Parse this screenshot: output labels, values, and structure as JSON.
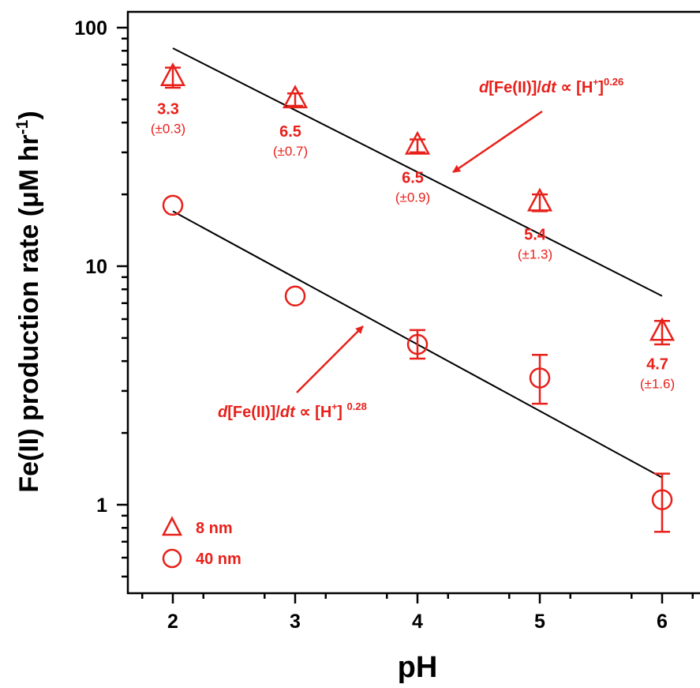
{
  "colors": {
    "series": "#e8201a",
    "axis": "#000000",
    "fit_line": "#000000"
  },
  "chart_data": {
    "type": "scatter",
    "xlabel": "pH",
    "ylabel_main": "Fe(II) production rate  (μM hr",
    "ylabel_sup": "-1",
    "ylabel_close": ")",
    "yscale": "log",
    "xlim": [
      1.6,
      6.3
    ],
    "ylim": [
      0.5,
      110
    ],
    "xticks": [
      2,
      3,
      4,
      5,
      6
    ],
    "xtick_labels": [
      "2",
      "3",
      "4",
      "5",
      "6"
    ],
    "yticks_major": [
      1,
      10,
      100
    ],
    "ytick_labels": [
      "1",
      "10",
      "100"
    ],
    "grid": false,
    "legend_position": "bottom-left",
    "series": [
      {
        "name": "8 nm",
        "marker": "triangle",
        "x": [
          2,
          3,
          4,
          5,
          6
        ],
        "y": [
          62,
          50,
          32,
          18.5,
          5.3
        ],
        "err_low": [
          6,
          3,
          2,
          1.5,
          0.6
        ],
        "err_high": [
          6,
          3,
          2,
          1.5,
          0.6
        ],
        "labels": [
          {
            "value": "3.3",
            "uncert": "(±0.3)"
          },
          {
            "value": "6.5",
            "uncert": "(±0.7)"
          },
          {
            "value": "6.5",
            "uncert": "(±0.9)"
          },
          {
            "value": "5.4",
            "uncert": "(±1.3)"
          },
          {
            "value": "4.7",
            "uncert": "(±1.6)"
          }
        ],
        "fit": {
          "x": [
            2,
            6
          ],
          "y": [
            82,
            7.5
          ]
        }
      },
      {
        "name": "40 nm",
        "marker": "circle",
        "x": [
          2,
          3,
          4,
          5,
          6
        ],
        "y": [
          18,
          7.5,
          4.7,
          3.4,
          1.05
        ],
        "err_low": [
          0,
          0,
          0.6,
          0.75,
          0.28
        ],
        "err_high": [
          0,
          0,
          0.7,
          0.85,
          0.3
        ],
        "fit": {
          "x": [
            2,
            6
          ],
          "y": [
            17,
            1.3
          ]
        }
      }
    ],
    "annotations": [
      {
        "pre": "d",
        "mid": "[Fe(II)]/",
        "dt": "dt",
        "prop": " ∝ [H",
        "plus": "+",
        "close": "]",
        "exp": "0.26",
        "points_to_series": "8 nm"
      },
      {
        "pre": "d",
        "mid": "[Fe(II)]/",
        "dt": "dt",
        "prop": " ∝ [H",
        "plus": "+",
        "close": "] ",
        "exp": "0.28",
        "points_to_series": "40 nm"
      }
    ]
  }
}
